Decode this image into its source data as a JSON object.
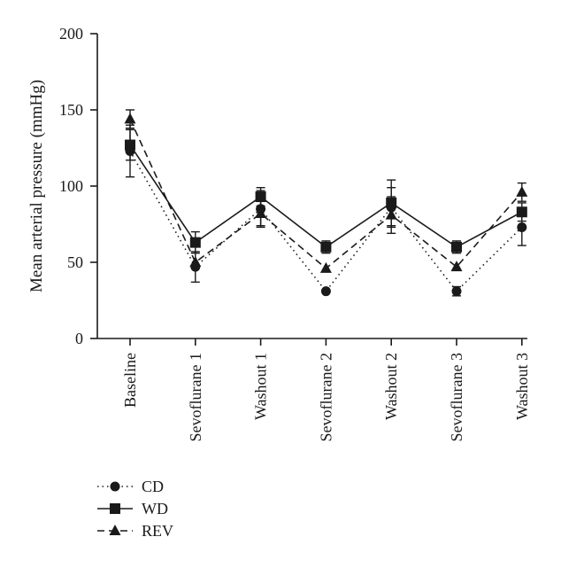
{
  "chart_data": {
    "type": "line",
    "title": "",
    "xlabel": "",
    "ylabel": "Mean arterial pressure (mmHg)",
    "ylim": [
      0,
      200
    ],
    "yticks": [
      0,
      50,
      100,
      150,
      200
    ],
    "grid": false,
    "legend_position": "bottom-left",
    "categories": [
      "Baseline",
      "Sevoflurane 1",
      "Washout 1",
      "Sevoflurane 2",
      "Washout 2",
      "Sevoflurane 3",
      "Washout 3"
    ],
    "series": [
      {
        "name": "CD",
        "marker": "circle",
        "line_style": "dotted",
        "values": [
          123,
          47,
          85,
          31,
          86,
          31,
          73
        ],
        "error": [
          17,
          10,
          12,
          0,
          13,
          3,
          12
        ]
      },
      {
        "name": "WD",
        "marker": "square",
        "line_style": "solid",
        "values": [
          127,
          63,
          93,
          60,
          89,
          60,
          83
        ],
        "error": [
          10,
          7,
          6,
          4,
          15,
          4,
          6
        ]
      },
      {
        "name": "REV",
        "marker": "triangle",
        "line_style": "dashed",
        "values": [
          144,
          50,
          82,
          46,
          81,
          47,
          96
        ],
        "error": [
          6,
          0,
          8,
          0,
          12,
          0,
          6
        ]
      }
    ],
    "colors": {
      "ink": "#1a1a1a",
      "background": "#ffffff"
    }
  }
}
